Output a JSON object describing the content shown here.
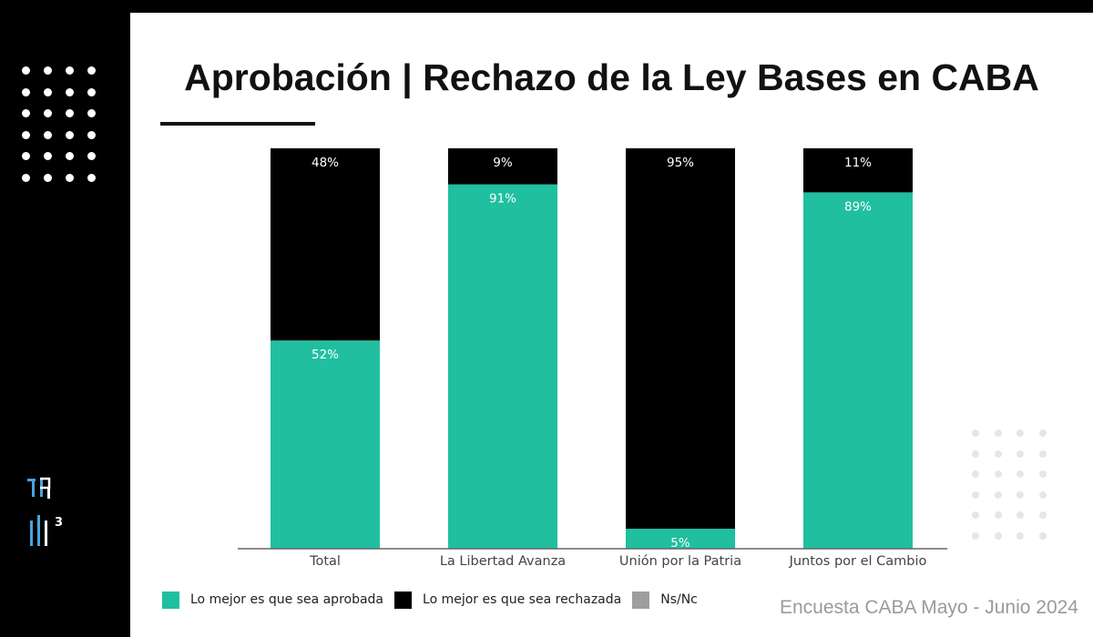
{
  "title": "Aprobación | Rechazo de la Ley Bases en CABA",
  "source": "Encuesta CABA Mayo - Junio 2024",
  "logo_text": "3",
  "colors": {
    "approved": "#20bfa0",
    "rejected": "#000000",
    "nsnc": "#9e9e9e",
    "background": "#ffffff",
    "frame": "#000000"
  },
  "legend": [
    {
      "label": "Lo mejor es que sea aprobada",
      "color": "#20bfa0"
    },
    {
      "label": "Lo mejor es que sea rechazada",
      "color": "#000000"
    },
    {
      "label": "Ns/Nc",
      "color": "#9e9e9e"
    }
  ],
  "chart_data": {
    "type": "bar",
    "stacked": true,
    "categories": [
      "Total",
      "La Libertad Avanza",
      "Unión por la Patria",
      "Juntos por el Cambio"
    ],
    "series": [
      {
        "name": "Lo mejor es que sea aprobada",
        "values": [
          52,
          91,
          5,
          89
        ],
        "labels": [
          "52%",
          "91%",
          "5%",
          "89%"
        ]
      },
      {
        "name": "Lo mejor es que sea rechazada",
        "values": [
          48,
          9,
          95,
          11
        ],
        "labels": [
          "48%",
          "9%",
          "95%",
          "11%"
        ]
      },
      {
        "name": "Ns/Nc",
        "values": [
          0,
          0,
          0,
          0
        ]
      }
    ],
    "ylim": [
      0,
      100
    ],
    "grid": false,
    "legend_position": "bottom-left"
  }
}
